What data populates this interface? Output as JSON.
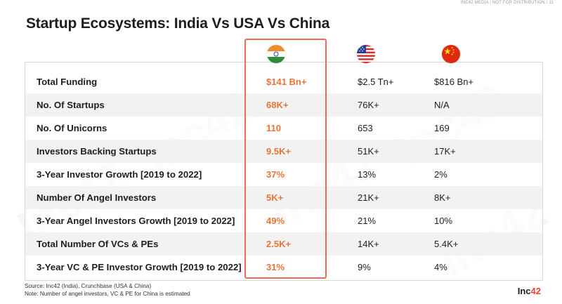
{
  "header": {
    "top_note": "INC42 MEDIA | NOT FOR DISTRIBUTION  /  11",
    "title": "Startup Ecosystems: India Vs USA Vs China"
  },
  "flags": {
    "india": "india-flag-icon",
    "usa": "usa-flag-icon",
    "china": "china-flag-icon"
  },
  "table": {
    "rows": [
      {
        "metric": "Total Funding",
        "india": "$141 Bn+",
        "usa": "$2.5 Tn+",
        "china": "$816 Bn+"
      },
      {
        "metric": "No. Of Startups",
        "india": "68K+",
        "usa": "76K+",
        "china": "N/A"
      },
      {
        "metric": "No. Of Unicorns",
        "india": "110",
        "usa": "653",
        "china": "169"
      },
      {
        "metric": "Investors Backing Startups",
        "india": "9.5K+",
        "usa": "51K+",
        "china": "17K+"
      },
      {
        "metric": "3-Year Investor Growth [2019 to 2022]",
        "india": "37%",
        "usa": "13%",
        "china": "2%"
      },
      {
        "metric": "Number Of Angel Investors",
        "india": "5K+",
        "usa": "21K+",
        "china": "8K+"
      },
      {
        "metric": "3-Year Angel Investors Growth [2019 to 2022]",
        "india": "49%",
        "usa": "21%",
        "china": "10%"
      },
      {
        "metric": "Total Number Of VCs & PEs",
        "india": "2.5K+",
        "usa": "14K+",
        "china": "5.4K+"
      },
      {
        "metric": "3-Year VC & PE Investor Growth [2019 to 2022]",
        "india": "31%",
        "usa": "9%",
        "china": "4%"
      }
    ]
  },
  "footer": {
    "source_line1": "Source: Inc42 (India), Crunchbase (USA & China)",
    "source_line2": "Note: Number of angel investors, VC & PE for China is estimated",
    "brand_prefix": "Inc",
    "brand_suffix": "42"
  },
  "colors": {
    "accent": "#e8743a",
    "highlight_border": "#ec6b5a",
    "row_alt": "#f2f2f2"
  }
}
